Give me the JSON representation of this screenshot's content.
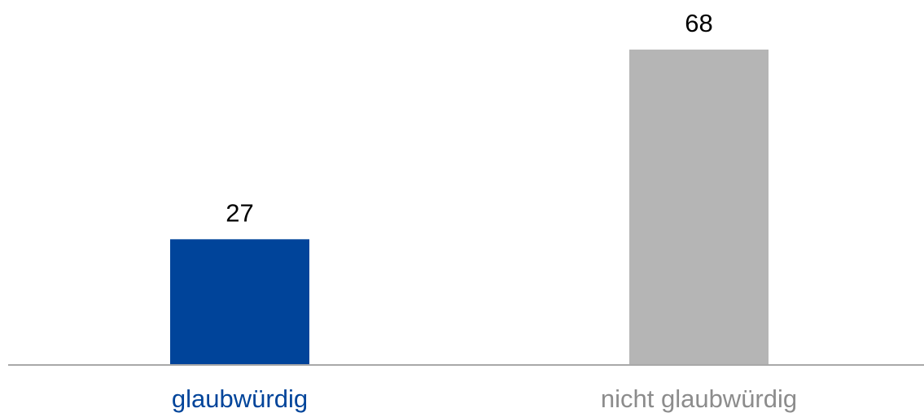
{
  "chart_data": {
    "type": "bar",
    "categories": [
      "glaubwürdig",
      "nicht glaubwürdig"
    ],
    "values": [
      27,
      68
    ],
    "colors": [
      "#00449a",
      "#b5b5b5"
    ],
    "label_colors": [
      "#00449a",
      "#8c8c8c"
    ]
  }
}
